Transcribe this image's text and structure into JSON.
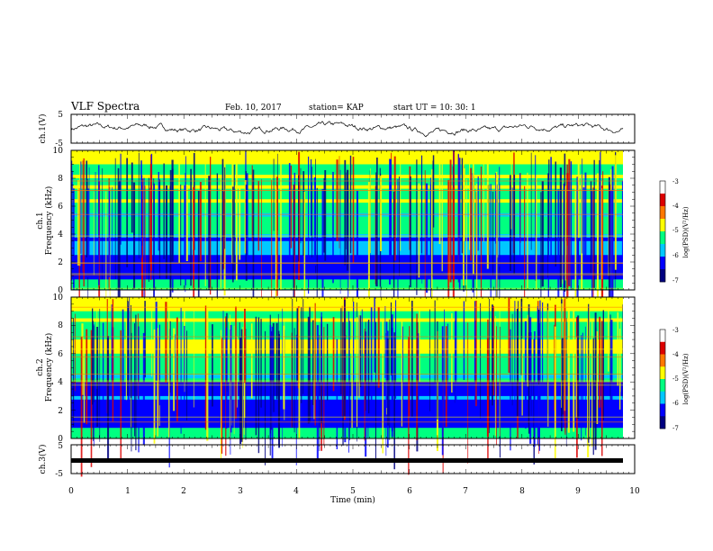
{
  "header": {
    "title": "VLF Spectra",
    "date": "Feb. 10, 2017",
    "station": "station= KAP",
    "start": "start  UT  =    10: 30: 1"
  },
  "chart_data": [
    {
      "type": "line",
      "panel": "ch1-voltage",
      "ylabel": "ch.1(V)",
      "xlim": [
        0,
        10
      ],
      "ylim": [
        -5,
        5
      ],
      "yticks": [
        "5",
        "-5"
      ],
      "note": "continuous noisy waveform around 0 V from 0 to ~9.8 min"
    },
    {
      "type": "heatmap",
      "panel": "ch1-spectrogram",
      "ylabel_lines": [
        "ch.1",
        "Frequency (kHz)"
      ],
      "xlim": [
        0,
        10
      ],
      "ylim": [
        0,
        10
      ],
      "yticks": [
        "0",
        "2",
        "4",
        "6",
        "8",
        "10"
      ],
      "colorbar": {
        "label": "log(PSD)(V²/Hz)",
        "range": [
          -7,
          -3
        ],
        "ticks": [
          "-3",
          "-4",
          "-5",
          "-6",
          "-7"
        ],
        "colormap": [
          "#000080",
          "#0000ff",
          "#00c8ff",
          "#00ff80",
          "#ffff00",
          "#ff7800",
          "#dc0000",
          "#ffffff"
        ]
      }
    },
    {
      "type": "heatmap",
      "panel": "ch2-spectrogram",
      "ylabel_lines": [
        "ch.2",
        "Frequency (kHz)"
      ],
      "xlim": [
        0,
        10
      ],
      "ylim": [
        0,
        10
      ],
      "yticks": [
        "0",
        "2",
        "4",
        "6",
        "8",
        "10"
      ],
      "colorbar": {
        "label": "log(PSD)(V²/Hz)",
        "range": [
          -7,
          -3
        ],
        "ticks": [
          "-3",
          "-4",
          "-5",
          "-6",
          "-7"
        ],
        "colormap": [
          "#000080",
          "#0000ff",
          "#00c8ff",
          "#00ff80",
          "#ffff00",
          "#ff7800",
          "#dc0000",
          "#ffffff"
        ]
      }
    },
    {
      "type": "line",
      "panel": "ch3-voltage",
      "ylabel": "ch.3(V)",
      "xlim": [
        0,
        10
      ],
      "ylim": [
        -5,
        5
      ],
      "yticks": [
        "5",
        "-5"
      ],
      "note": "flat thick line near -1.7 V from 0 to ~9.8 min"
    }
  ],
  "xaxis": {
    "label": "Time  (min)",
    "ticks": [
      "0",
      "1",
      "2",
      "3",
      "4",
      "5",
      "6",
      "7",
      "8",
      "9",
      "10"
    ]
  }
}
